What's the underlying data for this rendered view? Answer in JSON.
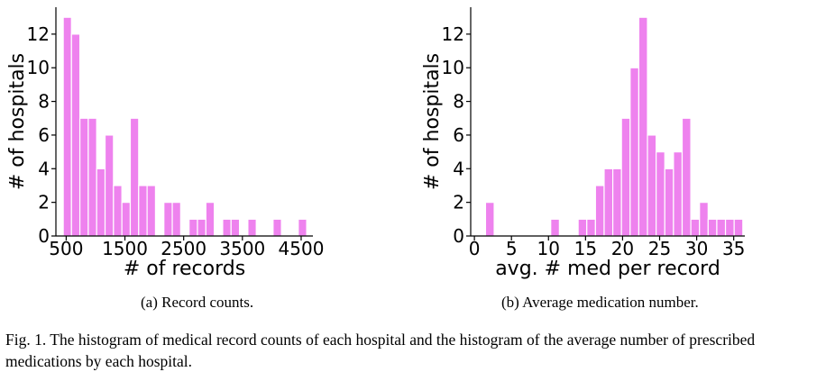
{
  "chart_data": [
    {
      "type": "bar",
      "xlabel": "# of records",
      "ylabel": "# of hospitals",
      "xlim": [
        325,
        4700
      ],
      "ylim": [
        0,
        13.6
      ],
      "xticks": [
        500,
        1500,
        2500,
        3500,
        4500
      ],
      "yticks": [
        0,
        2,
        4,
        6,
        8,
        10,
        12
      ],
      "bar_color": "#ee82ee",
      "bins": [
        {
          "x0": 450,
          "x1": 590,
          "value": 13
        },
        {
          "x0": 590,
          "x1": 733,
          "value": 12
        },
        {
          "x0": 733,
          "x1": 876,
          "value": 7
        },
        {
          "x0": 876,
          "x1": 1019,
          "value": 7
        },
        {
          "x0": 1019,
          "x1": 1162,
          "value": 4
        },
        {
          "x0": 1162,
          "x1": 1305,
          "value": 6
        },
        {
          "x0": 1305,
          "x1": 1448,
          "value": 3
        },
        {
          "x0": 1448,
          "x1": 1591,
          "value": 2
        },
        {
          "x0": 1591,
          "x1": 1734,
          "value": 7
        },
        {
          "x0": 1734,
          "x1": 1877,
          "value": 3
        },
        {
          "x0": 1877,
          "x1": 2020,
          "value": 3
        },
        {
          "x0": 2163,
          "x1": 2306,
          "value": 2
        },
        {
          "x0": 2306,
          "x1": 2449,
          "value": 2
        },
        {
          "x0": 2592,
          "x1": 2735,
          "value": 1
        },
        {
          "x0": 2735,
          "x1": 2878,
          "value": 1
        },
        {
          "x0": 2878,
          "x1": 3021,
          "value": 2
        },
        {
          "x0": 3164,
          "x1": 3307,
          "value": 1
        },
        {
          "x0": 3307,
          "x1": 3450,
          "value": 1
        },
        {
          "x0": 3593,
          "x1": 3736,
          "value": 1
        },
        {
          "x0": 4022,
          "x1": 4165,
          "value": 1
        },
        {
          "x0": 4451,
          "x1": 4594,
          "value": 1
        }
      ]
    },
    {
      "type": "bar",
      "xlabel": "avg. # med per record",
      "ylabel": "# of hospitals",
      "xlim": [
        -0.5,
        36.5
      ],
      "ylim": [
        0,
        13.6
      ],
      "xticks": [
        0,
        5,
        10,
        15,
        20,
        25,
        30,
        35
      ],
      "yticks": [
        0,
        2,
        4,
        6,
        8,
        10,
        12
      ],
      "bar_color": "#ee82ee",
      "bins": [
        {
          "x0": 1.5,
          "x1": 2.67,
          "value": 2
        },
        {
          "x0": 10.3,
          "x1": 11.47,
          "value": 1
        },
        {
          "x0": 14.0,
          "x1": 15.17,
          "value": 1
        },
        {
          "x0": 15.17,
          "x1": 16.34,
          "value": 1
        },
        {
          "x0": 16.34,
          "x1": 17.51,
          "value": 3
        },
        {
          "x0": 17.51,
          "x1": 18.68,
          "value": 4
        },
        {
          "x0": 18.68,
          "x1": 19.85,
          "value": 4
        },
        {
          "x0": 19.85,
          "x1": 21.02,
          "value": 7
        },
        {
          "x0": 21.02,
          "x1": 22.19,
          "value": 10
        },
        {
          "x0": 22.19,
          "x1": 23.36,
          "value": 13
        },
        {
          "x0": 23.36,
          "x1": 24.53,
          "value": 6
        },
        {
          "x0": 24.53,
          "x1": 25.7,
          "value": 5
        },
        {
          "x0": 25.7,
          "x1": 26.87,
          "value": 4
        },
        {
          "x0": 26.87,
          "x1": 28.04,
          "value": 5
        },
        {
          "x0": 28.04,
          "x1": 29.21,
          "value": 7
        },
        {
          "x0": 29.21,
          "x1": 30.38,
          "value": 1
        },
        {
          "x0": 30.38,
          "x1": 31.55,
          "value": 2
        },
        {
          "x0": 31.55,
          "x1": 32.72,
          "value": 1
        },
        {
          "x0": 32.72,
          "x1": 33.89,
          "value": 1
        },
        {
          "x0": 33.89,
          "x1": 35.06,
          "value": 1
        },
        {
          "x0": 35.06,
          "x1": 36.23,
          "value": 1
        }
      ]
    }
  ],
  "subcaptions": [
    "(a) Record counts.",
    "(b) Average medication number."
  ],
  "figure_caption": "Fig. 1.  The histogram of medical record counts of each hospital and the histogram of the average number of prescribed medications by each hospital."
}
